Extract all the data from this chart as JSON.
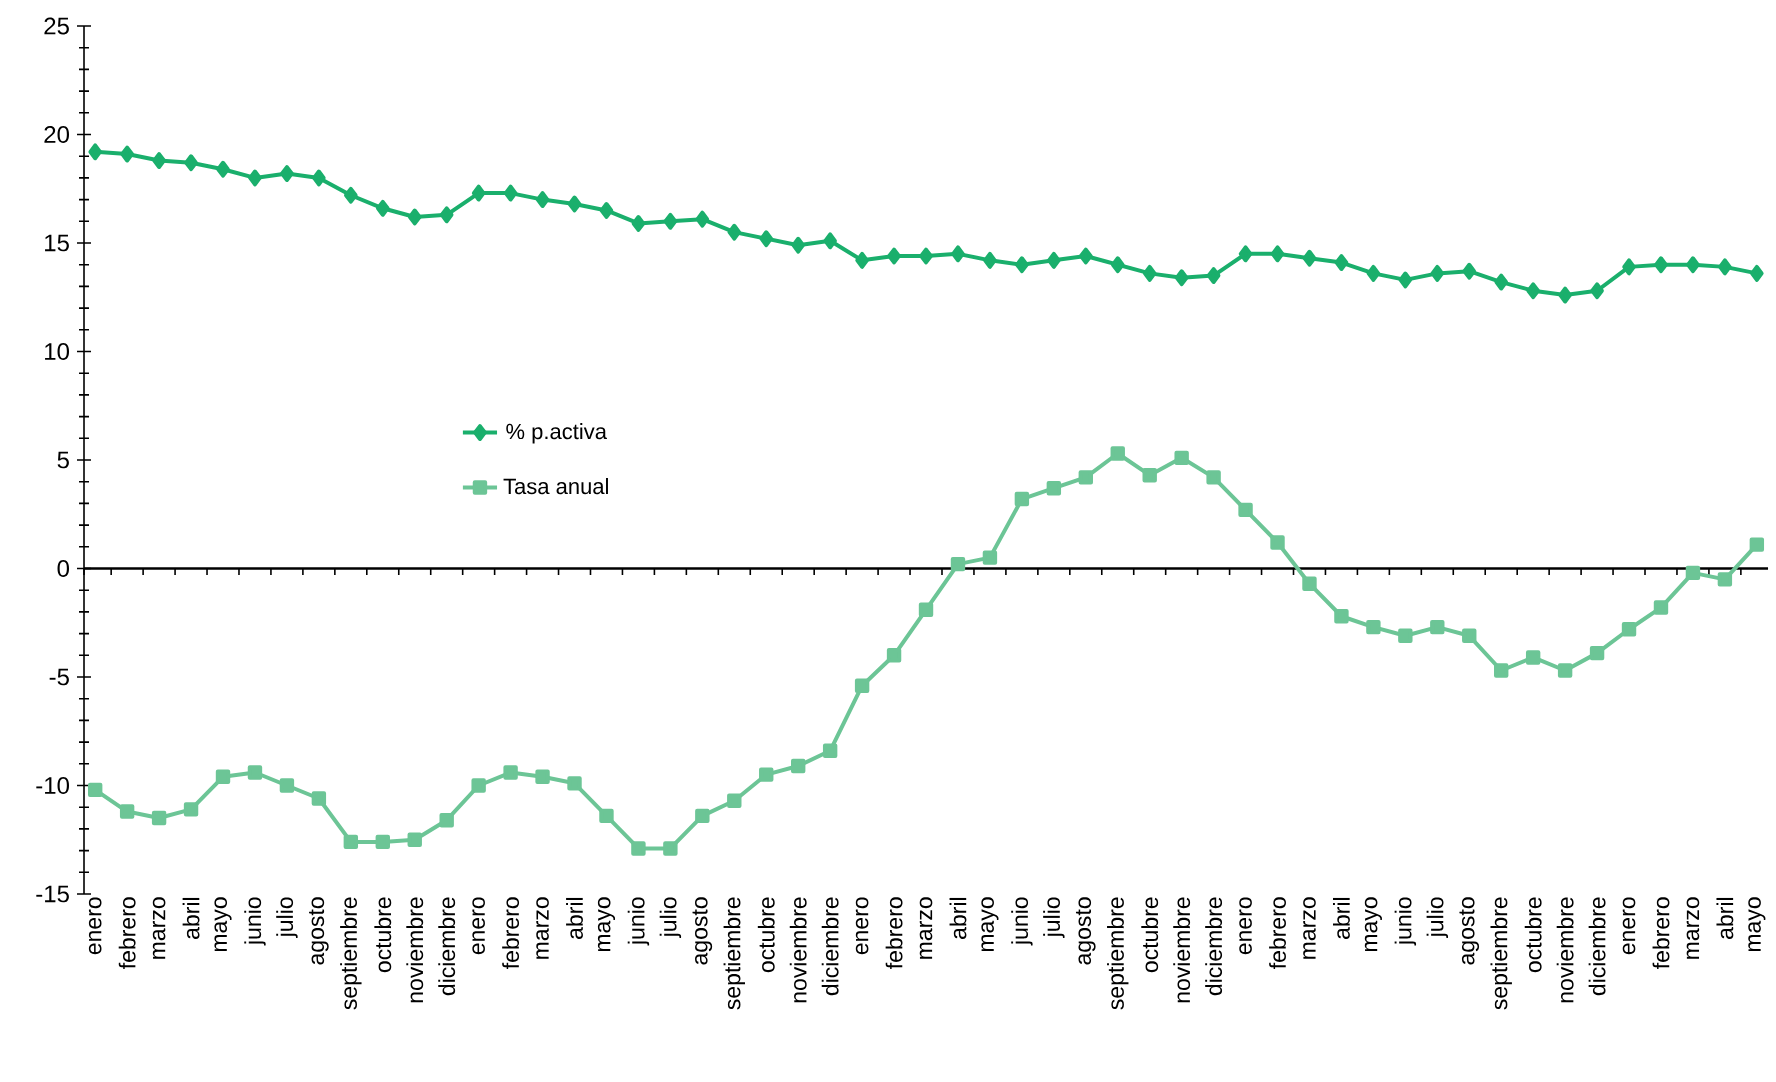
{
  "chart_data": {
    "type": "line",
    "categories": [
      "enero",
      "febrero",
      "marzo",
      "abril",
      "mayo",
      "junio",
      "julio",
      "agosto",
      "septiembre",
      "octubre",
      "noviembre",
      "diciembre",
      "enero",
      "febrero",
      "marzo",
      "abril",
      "mayo",
      "junio",
      "julio",
      "agosto",
      "septiembre",
      "octubre",
      "noviembre",
      "diciembre",
      "enero",
      "febrero",
      "marzo",
      "abril",
      "mayo",
      "junio",
      "julio",
      "agosto",
      "septiembre",
      "octubre",
      "noviembre",
      "diciembre",
      "enero",
      "febrero",
      "marzo",
      "abril",
      "mayo",
      "junio",
      "julio",
      "agosto",
      "septiembre",
      "octubre",
      "noviembre",
      "diciembre",
      "enero",
      "febrero",
      "marzo",
      "abril",
      "mayo"
    ],
    "series": [
      {
        "name": "% p.activa",
        "color": "#1aaf6c",
        "marker": "diamond",
        "values": [
          19.2,
          19.1,
          18.8,
          18.7,
          18.4,
          18.0,
          18.2,
          18.0,
          17.2,
          16.6,
          16.2,
          16.3,
          17.3,
          17.3,
          17.0,
          16.8,
          16.5,
          15.9,
          16.0,
          16.1,
          15.5,
          15.2,
          14.9,
          15.1,
          14.2,
          14.4,
          14.4,
          14.5,
          14.2,
          14.0,
          14.2,
          14.4,
          14.0,
          13.6,
          13.4,
          13.5,
          14.5,
          14.5,
          14.3,
          14.1,
          13.6,
          13.3,
          13.6,
          13.7,
          13.2,
          12.8,
          12.6,
          12.8,
          13.9,
          14.0,
          14.0,
          13.9,
          13.6
        ]
      },
      {
        "name": "Tasa anual",
        "color": "#6cc596",
        "marker": "square",
        "values": [
          -10.2,
          -11.2,
          -11.5,
          -11.1,
          -9.6,
          -9.4,
          -10.0,
          -10.6,
          -12.6,
          -12.6,
          -12.5,
          -11.6,
          -10.0,
          -9.4,
          -9.6,
          -9.9,
          -11.4,
          -12.9,
          -12.9,
          -11.4,
          -10.7,
          -9.5,
          -9.1,
          -8.4,
          -5.4,
          -4.0,
          -1.9,
          0.2,
          0.5,
          3.2,
          3.7,
          4.2,
          5.3,
          4.3,
          5.1,
          4.2,
          2.7,
          1.2,
          -0.7,
          -2.2,
          -2.7,
          -3.1,
          -2.7,
          -3.1,
          -4.7,
          -4.1,
          -4.7,
          -3.9,
          -2.8,
          -1.8,
          -0.2,
          -0.5,
          1.1
        ]
      }
    ],
    "ylim": [
      -15,
      25
    ],
    "yticks": [
      -15,
      -10,
      -5,
      0,
      5,
      10,
      15,
      20,
      25
    ],
    "legend": "left"
  }
}
